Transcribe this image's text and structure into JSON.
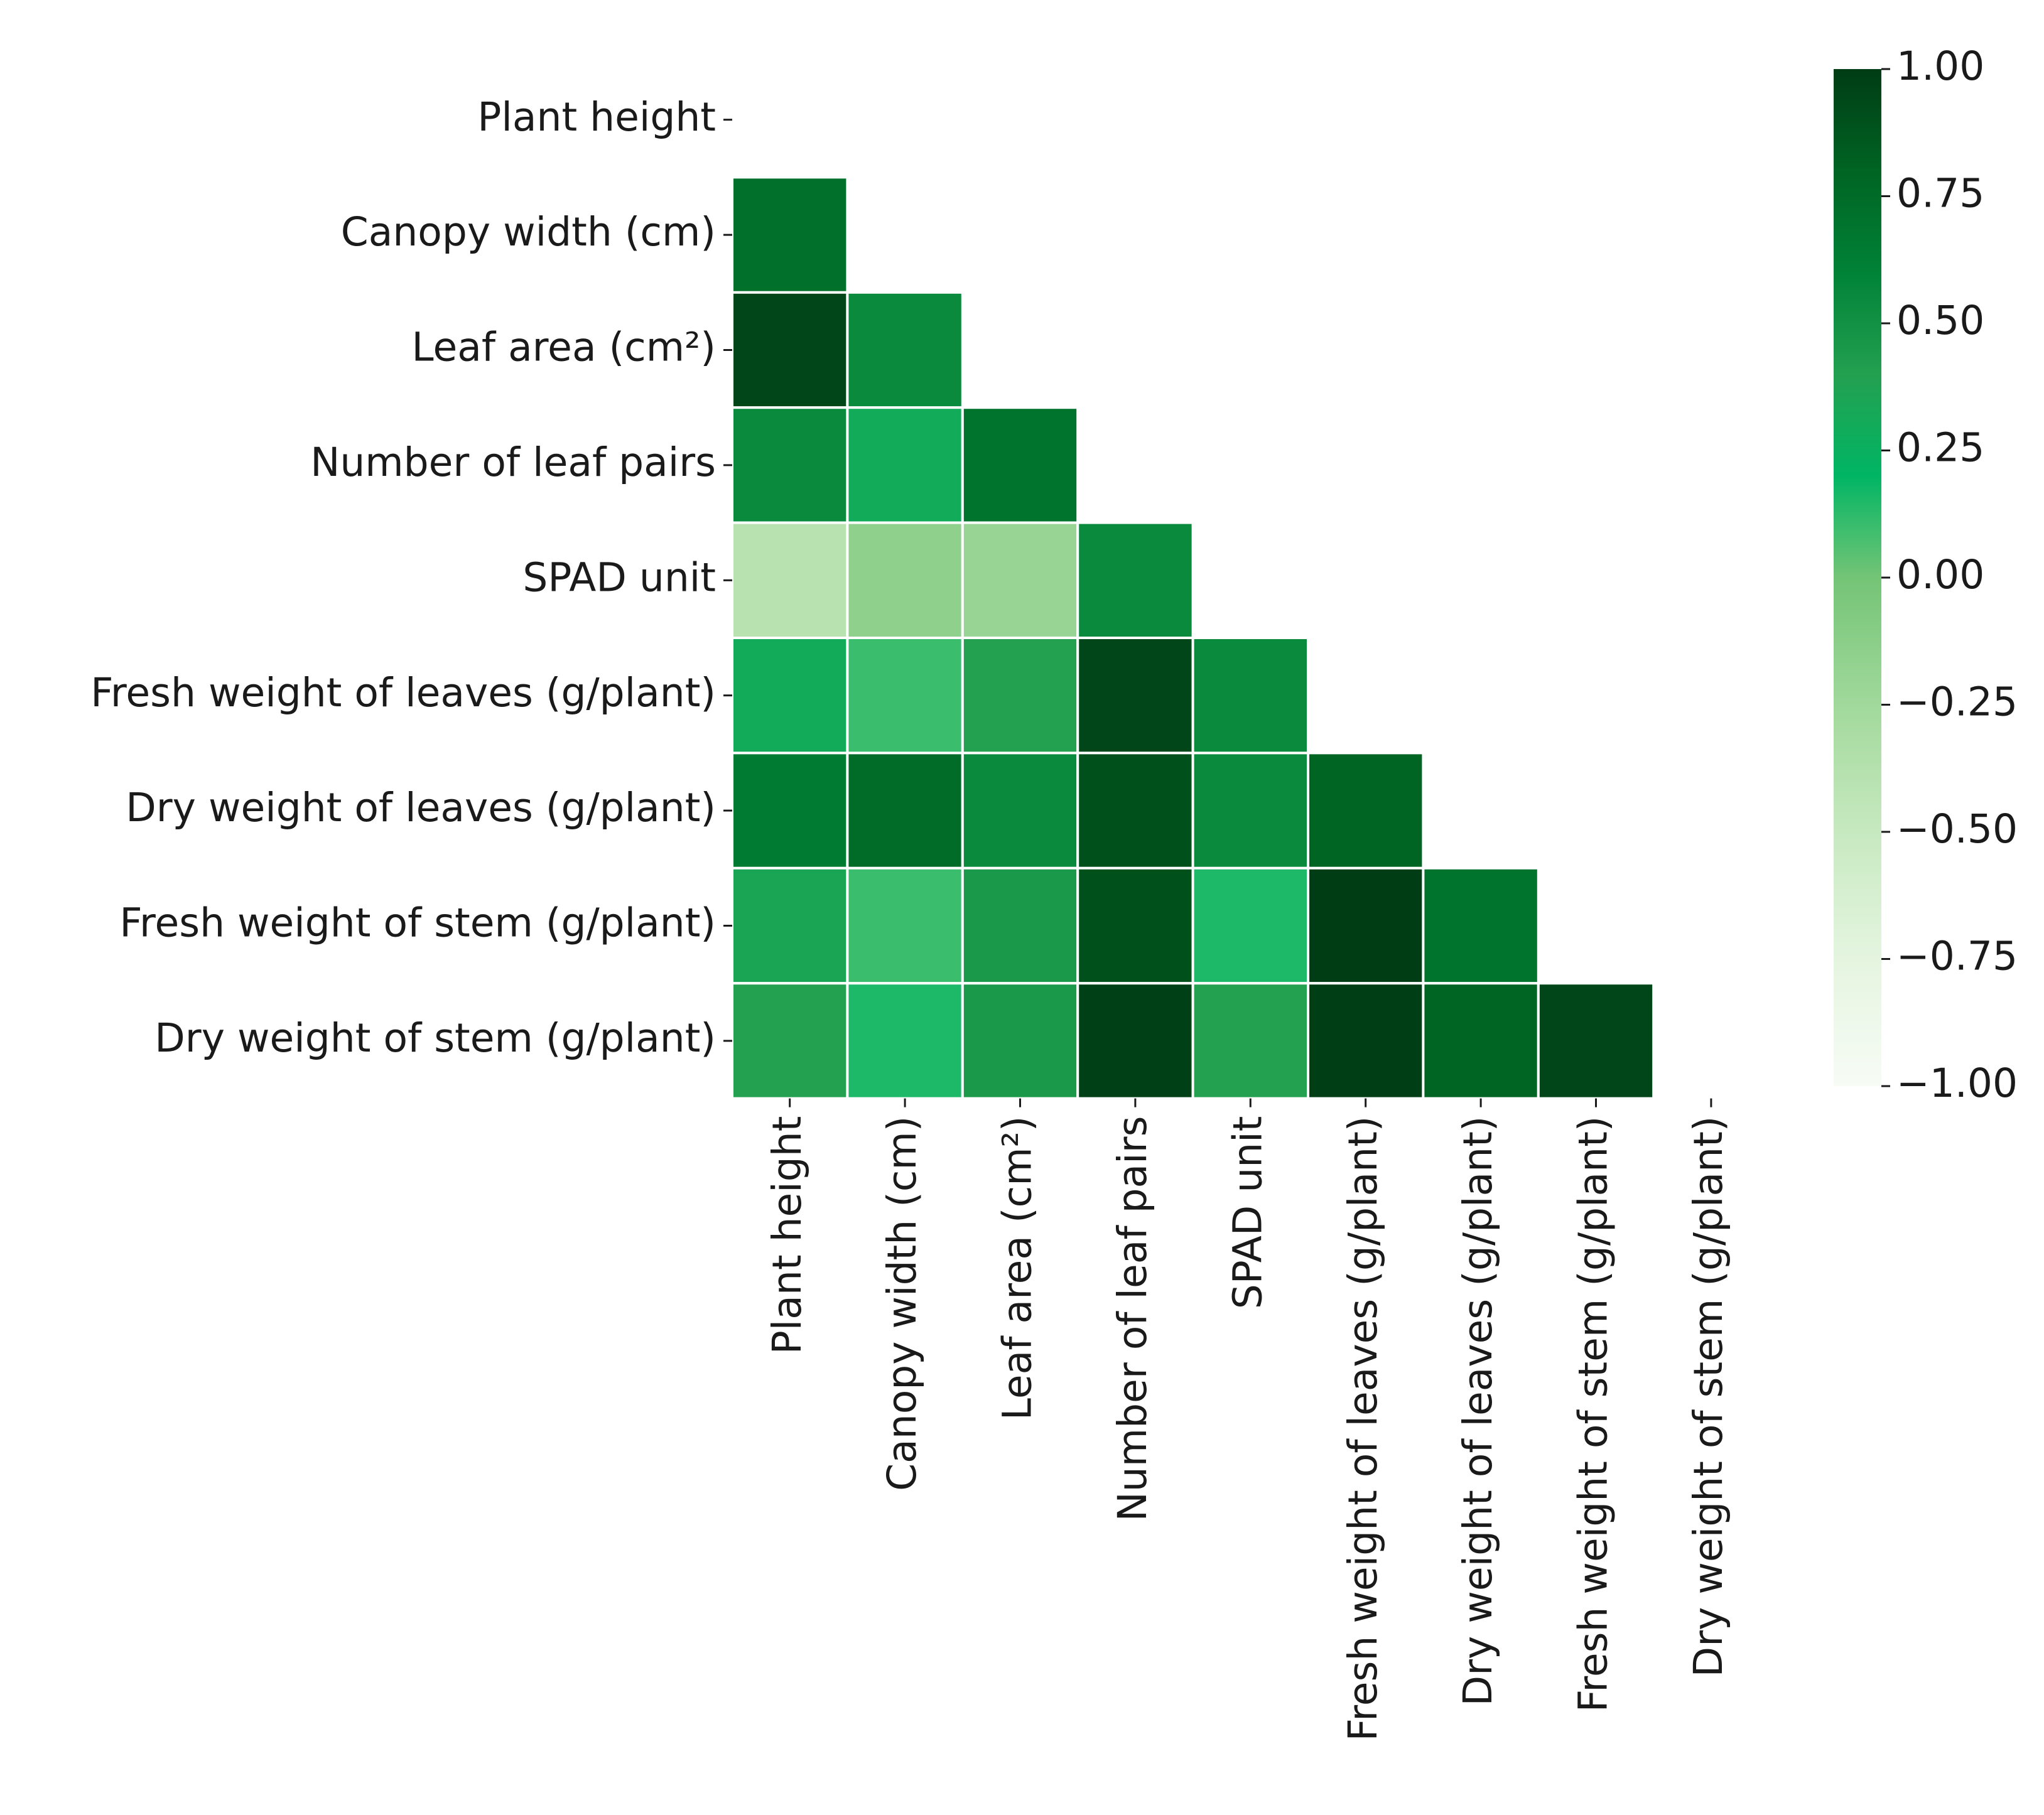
{
  "chart_data": {
    "type": "heatmap",
    "title": "",
    "xlabel": "",
    "ylabel": "",
    "mask": "upper-triangle-including-diagonal",
    "variables": [
      "Plant height",
      "Canopy width (cm)",
      "Leaf area (cm²)",
      "Number of leaf pairs",
      "SPAD unit",
      "Fresh weight of leaves (g/plant)",
      "Dry weight of leaves (g/plant)",
      "Fresh weight of stem (g/plant)",
      "Dry weight of stem (g/plant)"
    ],
    "matrix": [
      [
        null,
        null,
        null,
        null,
        null,
        null,
        null,
        null,
        null
      ],
      [
        0.72,
        null,
        null,
        null,
        null,
        null,
        null,
        null,
        null
      ],
      [
        0.95,
        0.55,
        null,
        null,
        null,
        null,
        null,
        null,
        null
      ],
      [
        0.55,
        0.3,
        0.7,
        null,
        null,
        null,
        null,
        null,
        null
      ],
      [
        -0.4,
        -0.15,
        -0.2,
        0.55,
        null,
        null,
        null,
        null,
        null
      ],
      [
        0.3,
        0.1,
        0.4,
        0.95,
        0.55,
        null,
        null,
        null,
        null
      ],
      [
        0.65,
        0.75,
        0.55,
        0.9,
        0.55,
        0.8,
        null,
        null,
        null
      ],
      [
        0.35,
        0.1,
        0.45,
        0.9,
        0.15,
        1.0,
        0.7,
        null,
        null
      ],
      [
        0.4,
        0.15,
        0.45,
        0.98,
        0.4,
        0.99,
        0.8,
        0.95,
        null
      ]
    ],
    "colorbar": {
      "colormap": "Greens",
      "vmin": -1.0,
      "vmax": 1.0,
      "ticks": [
        "1.00",
        "0.75",
        "0.50",
        "0.25",
        "0.00",
        "−0.25",
        "−0.50",
        "−0.75",
        "−1.00"
      ],
      "tick_values": [
        1.0,
        0.75,
        0.5,
        0.25,
        0.0,
        -0.25,
        -0.5,
        -0.75,
        -1.0
      ]
    }
  }
}
